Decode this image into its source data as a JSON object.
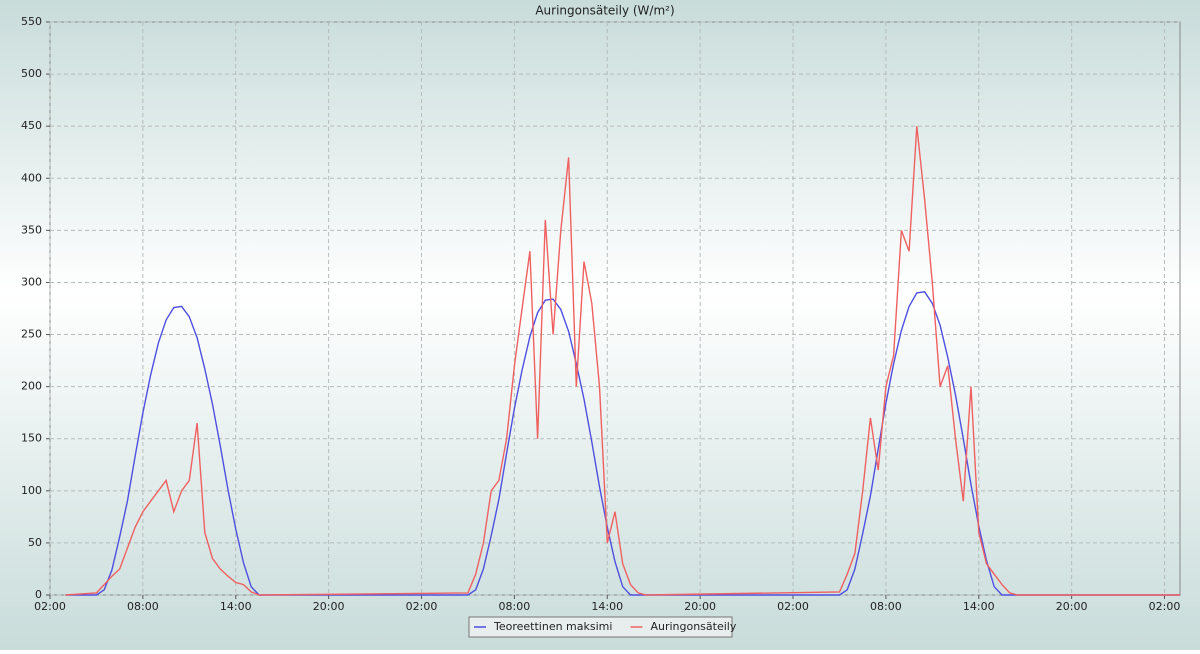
{
  "chart_data": {
    "type": "line",
    "title": "Auringonsäteily (W/m²)",
    "x": [
      1,
      3.0,
      3.5,
      4.0,
      4.5,
      5.0,
      5.5,
      6.0,
      6.5,
      7.0,
      7.5,
      8.0,
      8.5,
      9.0,
      9.5,
      10.0,
      10.5,
      11.0,
      11.5,
      12.0,
      12.5,
      13.0,
      13.5,
      27.0,
      27.5,
      28.0,
      28.5,
      29.0,
      29.5,
      30.0,
      30.5,
      31.0,
      31.5,
      32.0,
      32.5,
      33.0,
      33.5,
      34.0,
      34.5,
      35.0,
      35.5,
      36.0,
      36.5,
      37.0,
      37.5,
      38.0,
      38.5,
      51.0,
      51.5,
      52.0,
      52.5,
      53.0,
      53.5,
      54.0,
      54.5,
      55.0,
      55.5,
      56.0,
      56.5,
      57.0,
      57.5,
      58.0,
      58.5,
      59.0,
      59.5,
      60.0,
      60.5,
      61.0,
      61.5,
      62.0,
      62.5,
      73
    ],
    "series": [
      {
        "name": "Teoreettinen maksimi",
        "color": "#4f4fe0",
        "values": [
          0,
          0,
          5,
          24,
          56,
          90,
          133,
          175,
          211,
          242,
          264,
          276,
          277,
          267,
          247,
          217,
          183,
          143,
          101,
          63,
          31,
          8,
          0,
          0,
          5,
          25,
          57,
          92,
          136,
          179,
          216,
          248,
          271,
          283,
          284,
          274,
          253,
          222,
          188,
          147,
          104,
          65,
          32,
          8,
          0,
          0,
          0,
          0,
          5,
          25,
          59,
          95,
          140,
          184,
          222,
          254,
          277,
          290,
          291,
          280,
          259,
          228,
          192,
          150,
          106,
          66,
          33,
          8,
          0,
          0,
          0,
          0
        ]
      },
      {
        "name": "Auringonsäteily",
        "color": "#f06060",
        "values": [
          0,
          2,
          10,
          18,
          25,
          45,
          65,
          80,
          90,
          100,
          110,
          80,
          100,
          110,
          165,
          60,
          35,
          25,
          18,
          12,
          10,
          3,
          0,
          2,
          20,
          50,
          100,
          110,
          150,
          220,
          275,
          330,
          150,
          360,
          250,
          350,
          420,
          200,
          320,
          280,
          200,
          50,
          80,
          30,
          10,
          2,
          0,
          3,
          20,
          40,
          100,
          170,
          120,
          200,
          230,
          350,
          330,
          450,
          380,
          300,
          200,
          220,
          150,
          90,
          200,
          60,
          30,
          20,
          10,
          2,
          0,
          0
        ]
      }
    ],
    "xlim": [
      0,
      73
    ],
    "xticks": [
      {
        "value": 0,
        "label": "02:00"
      },
      {
        "value": 6,
        "label": "08:00"
      },
      {
        "value": 12,
        "label": "14:00"
      },
      {
        "value": 18,
        "label": "20:00"
      },
      {
        "value": 24,
        "label": "02:00"
      },
      {
        "value": 30,
        "label": "08:00"
      },
      {
        "value": 36,
        "label": "14:00"
      },
      {
        "value": 42,
        "label": "20:00"
      },
      {
        "value": 48,
        "label": "02:00"
      },
      {
        "value": 54,
        "label": "08:00"
      },
      {
        "value": 60,
        "label": "14:00"
      },
      {
        "value": 66,
        "label": "20:00"
      },
      {
        "value": 72,
        "label": "02:00"
      }
    ],
    "ylim": [
      0,
      550
    ],
    "yticks": [
      0,
      50,
      100,
      150,
      200,
      250,
      300,
      350,
      400,
      450,
      500,
      550
    ],
    "grid": true
  }
}
